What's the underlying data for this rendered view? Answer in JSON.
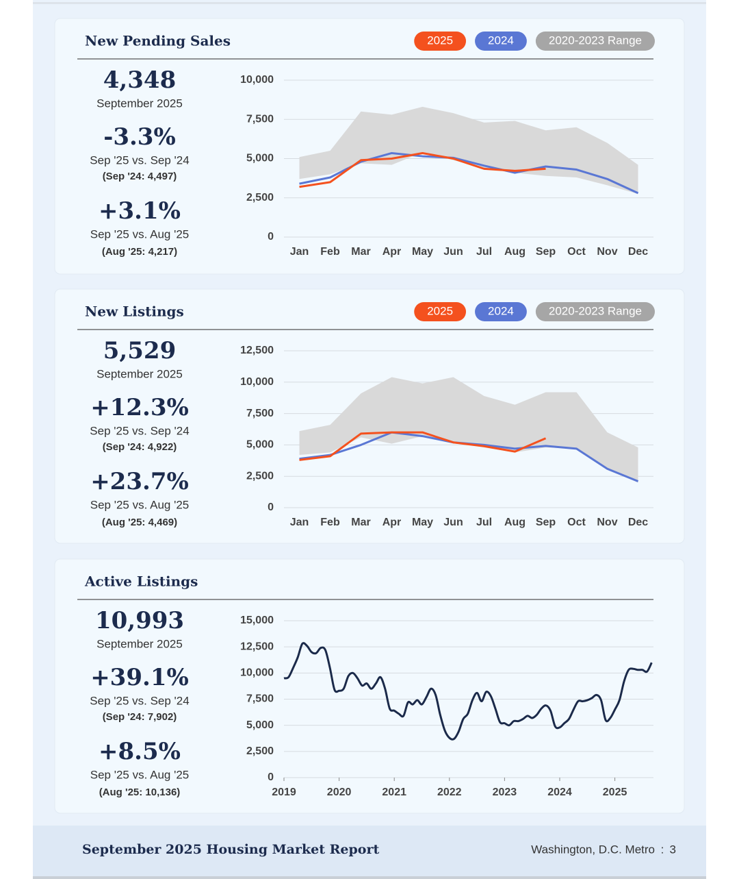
{
  "chart_data": [
    {
      "type": "line",
      "title": "New Pending Sales",
      "categories": [
        "Jan",
        "Feb",
        "Mar",
        "Apr",
        "May",
        "Jun",
        "Jul",
        "Aug",
        "Sep",
        "Oct",
        "Nov",
        "Dec"
      ],
      "ylim": [
        0,
        10000
      ],
      "yticks": [
        0,
        {
          "value": 2500,
          "label": "2,500"
        },
        {
          "value": 5000,
          "label": "5,000"
        },
        {
          "value": 7500,
          "label": "7,500"
        },
        {
          "value": 10000,
          "label": "10,000"
        }
      ],
      "grid": true,
      "legend": "top-right",
      "series": [
        {
          "name": "2025",
          "color": "#f4511e",
          "values": [
            3200,
            3500,
            4900,
            5000,
            5350,
            5000,
            4350,
            4217,
            4348,
            null,
            null,
            null
          ]
        },
        {
          "name": "2024",
          "color": "#5a77d4",
          "values": [
            3400,
            3800,
            4800,
            5350,
            5150,
            5050,
            4550,
            4100,
            4497,
            4300,
            3700,
            2800
          ]
        }
      ],
      "range": {
        "name": "2020-2023 Range",
        "color": "#a6a6a6",
        "fill": "#d9d9d9",
        "high": [
          5100,
          5500,
          8000,
          7800,
          8300,
          7900,
          7300,
          7400,
          6800,
          7000,
          6000,
          4600
        ],
        "low": [
          3700,
          4000,
          4700,
          4600,
          5400,
          4900,
          4400,
          4100,
          3900,
          3800,
          3300,
          2750
        ]
      }
    },
    {
      "type": "line",
      "title": "New Listings",
      "categories": [
        "Jan",
        "Feb",
        "Mar",
        "Apr",
        "May",
        "Jun",
        "Jul",
        "Aug",
        "Sep",
        "Oct",
        "Nov",
        "Dec"
      ],
      "ylim": [
        0,
        12500
      ],
      "yticks": [
        0,
        {
          "value": 2500,
          "label": "2,500"
        },
        {
          "value": 5000,
          "label": "5,000"
        },
        {
          "value": 7500,
          "label": "7,500"
        },
        {
          "value": 10000,
          "label": "10,000"
        },
        {
          "value": 12500,
          "label": "12,500"
        }
      ],
      "grid": true,
      "legend": "top-right",
      "series": [
        {
          "name": "2025",
          "color": "#f4511e",
          "values": [
            3800,
            4100,
            5900,
            6000,
            6000,
            5200,
            4900,
            4469,
            5529,
            null,
            null,
            null
          ]
        },
        {
          "name": "2024",
          "color": "#5a77d4",
          "values": [
            3900,
            4200,
            5000,
            6000,
            5700,
            5200,
            5000,
            4700,
            4922,
            4700,
            3100,
            2100
          ]
        }
      ],
      "range": {
        "name": "2020-2023 Range",
        "color": "#a6a6a6",
        "fill": "#d9d9d9",
        "high": [
          6100,
          6600,
          9100,
          10400,
          9900,
          10400,
          8900,
          8200,
          9200,
          9200,
          6000,
          4800
        ],
        "low": [
          4200,
          4400,
          5600,
          5100,
          5700,
          5200,
          4800,
          4400,
          4800,
          4700,
          3100,
          2000
        ]
      }
    },
    {
      "type": "line",
      "title": "Active Listings",
      "smooth": true,
      "x": [
        2019,
        2019.083,
        2019.167,
        2019.25,
        2019.333,
        2019.417,
        2019.5,
        2019.583,
        2019.667,
        2019.75,
        2019.833,
        2019.917,
        2020,
        2020.083,
        2020.167,
        2020.25,
        2020.333,
        2020.417,
        2020.5,
        2020.583,
        2020.667,
        2020.75,
        2020.833,
        2020.917,
        2021,
        2021.083,
        2021.167,
        2021.25,
        2021.333,
        2021.417,
        2021.5,
        2021.583,
        2021.667,
        2021.75,
        2021.833,
        2021.917,
        2022,
        2022.083,
        2022.167,
        2022.25,
        2022.333,
        2022.417,
        2022.5,
        2022.583,
        2022.667,
        2022.75,
        2022.833,
        2022.917,
        2023,
        2023.083,
        2023.167,
        2023.25,
        2023.333,
        2023.417,
        2023.5,
        2023.583,
        2023.667,
        2023.75,
        2023.833,
        2023.917,
        2024,
        2024.083,
        2024.167,
        2024.25,
        2024.333,
        2024.417,
        2024.5,
        2024.583,
        2024.667,
        2024.75,
        2024.833,
        2024.917,
        2025,
        2025.083,
        2025.167,
        2025.25,
        2025.333,
        2025.417,
        2025.5,
        2025.583,
        2025.667
      ],
      "xlim": [
        2019,
        2025.7
      ],
      "xticks": [
        2019,
        2020,
        2021,
        2022,
        2023,
        2024,
        2025
      ],
      "ylim": [
        0,
        15000
      ],
      "yticks": [
        0,
        {
          "value": 2500,
          "label": "2,500"
        },
        {
          "value": 5000,
          "label": "5,000"
        },
        {
          "value": 7500,
          "label": "7,500"
        },
        {
          "value": 10000,
          "label": "10,000"
        },
        {
          "value": 12500,
          "label": "12,500"
        },
        {
          "value": 15000,
          "label": "15,000"
        }
      ],
      "grid": true,
      "series": [
        {
          "color": "#1b2a4a",
          "values": [
            9500,
            9600,
            10500,
            11500,
            12800,
            12600,
            12000,
            11900,
            12400,
            12200,
            10500,
            8400,
            8300,
            8500,
            9700,
            10000,
            9500,
            8800,
            9000,
            8500,
            9000,
            9600,
            8500,
            6600,
            6400,
            6100,
            5900,
            7200,
            7000,
            7400,
            7000,
            7700,
            8500,
            7900,
            6000,
            4500,
            3800,
            3700,
            4400,
            5600,
            6100,
            7400,
            8100,
            7300,
            8200,
            7800,
            6600,
            5300,
            5200,
            5000,
            5400,
            5400,
            5600,
            5900,
            5700,
            6000,
            6600,
            6900,
            6400,
            4900,
            4800,
            5200,
            5600,
            6500,
            7300,
            7300,
            7400,
            7600,
            7902,
            7400,
            5500,
            5700,
            6500,
            7400,
            9200,
            10300,
            10400,
            10300,
            10300,
            10136,
            10993
          ]
        }
      ]
    }
  ],
  "panels": [
    {
      "value": "4,348",
      "period": "September 2025",
      "change_yoy": "-3.3%",
      "label_yoy": "Sep '25 vs. Sep '24",
      "ref_yoy": "(Sep '24: 4,497)",
      "change_mom": "+3.1%",
      "label_mom": "Sep '25 vs. Aug '25",
      "ref_mom": "(Aug '25: 4,217)"
    },
    {
      "value": "5,529",
      "period": "September 2025",
      "change_yoy": "+12.3%",
      "label_yoy": "Sep '25 vs. Sep '24",
      "ref_yoy": "(Sep '24: 4,922)",
      "change_mom": "+23.7%",
      "label_mom": "Sep '25 vs. Aug '25",
      "ref_mom": "(Aug '25: 4,469)"
    },
    {
      "value": "10,993",
      "period": "September 2025",
      "change_yoy": "+39.1%",
      "label_yoy": "Sep '25 vs. Sep '24",
      "ref_yoy": "(Sep '24: 7,902)",
      "change_mom": "+8.5%",
      "label_mom": "Sep '25 vs. Aug '25",
      "ref_mom": "(Aug '25: 10,136)"
    }
  ],
  "footer": {
    "title": "September 2025 Housing Market Report",
    "location": "Washington, D.C. Metro",
    "page": "3"
  }
}
